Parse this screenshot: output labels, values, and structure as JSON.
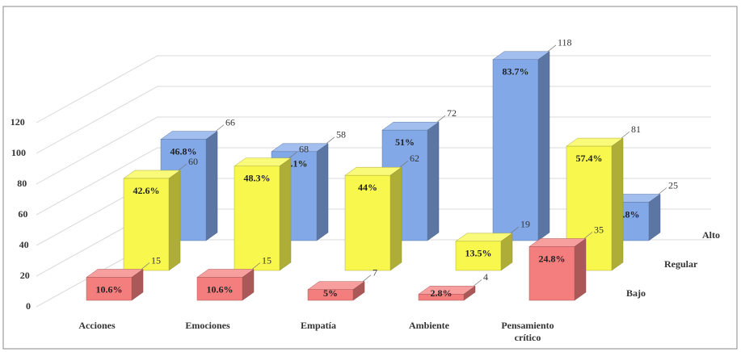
{
  "chart_data": {
    "type": "bar3d",
    "categories": [
      "Acciones",
      "Emociones",
      "Empatía",
      "Ambiente",
      "Pensamiento crítico"
    ],
    "series": [
      {
        "name": "Bajo",
        "color": "#f47e7e",
        "values": [
          15,
          15,
          7,
          4,
          35
        ],
        "value_labels_pct": [
          "10.6%",
          "10.6%",
          "5%",
          "2.8%",
          "24.8%"
        ]
      },
      {
        "name": "Regular",
        "color": "#f7f74e",
        "values": [
          60,
          68,
          62,
          19,
          81
        ],
        "value_labels_pct": [
          "42.6%",
          "48.3%",
          "44%",
          "13.5%",
          "57.4%"
        ]
      },
      {
        "name": "Alto",
        "color": "#82a8e8",
        "values": [
          66,
          58,
          72,
          118,
          25
        ],
        "value_labels_pct": [
          "46.8%",
          "41.1%",
          "51%",
          "83.7%",
          "17.8%"
        ]
      }
    ],
    "ylim": [
      0,
      140
    ],
    "yticks": [
      0,
      20,
      40,
      60,
      80,
      100,
      120
    ],
    "grid": true
  }
}
